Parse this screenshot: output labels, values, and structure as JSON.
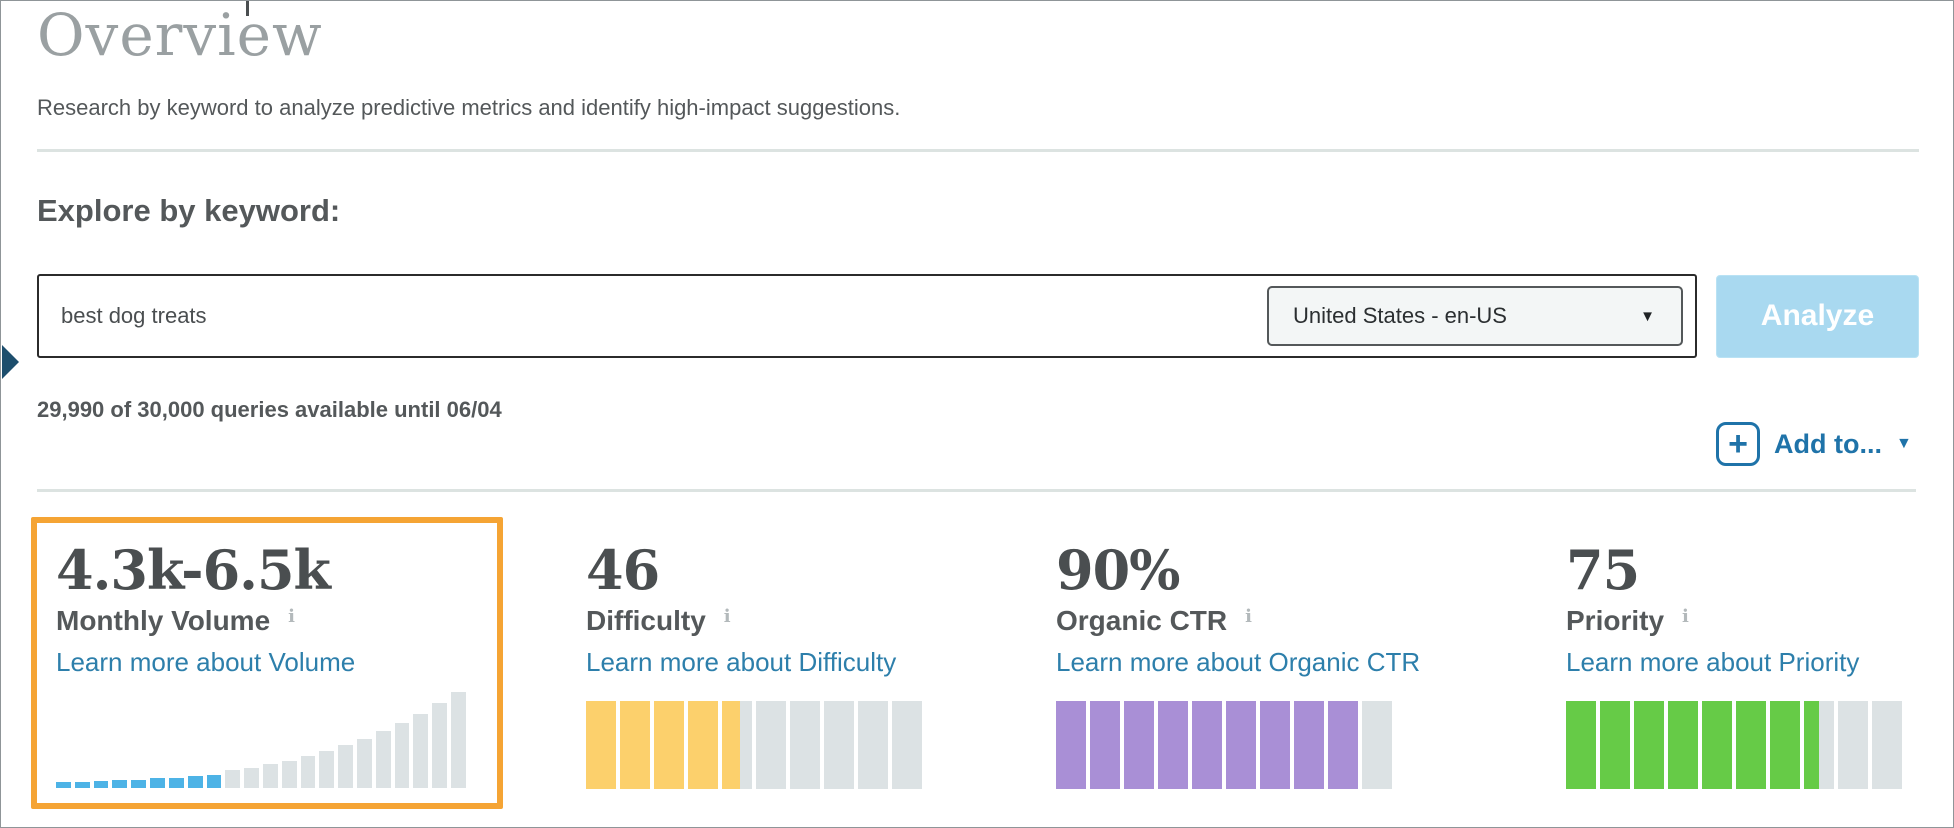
{
  "page": {
    "title": "Overview",
    "subtitle": "Research by keyword to analyze predictive metrics and identify high-impact suggestions."
  },
  "explore": {
    "heading": "Explore by keyword:",
    "keyword_input": {
      "value": "best dog treats"
    },
    "locale_select": {
      "value": "United States - en-US",
      "caret_icon": "▼"
    },
    "analyze_button_label": "Analyze",
    "quota_note": "29,990 of 30,000 queries available until 06/04",
    "add_to": {
      "plus_icon": "+",
      "label": "Add to...",
      "caret_icon": "▼"
    }
  },
  "colors": {
    "highlight_border": "#f5a434",
    "analyze_button_bg": "#a9d9f0",
    "link_blue": "#2d7fab",
    "action_blue": "#1f73a9",
    "pointer_navy": "#1d4e6d",
    "volume_bar_blue": "#4db3e6",
    "difficulty_yellow": "#fcd06c",
    "organic_ctr_purple": "#a98fd6",
    "priority_green": "#66cb47",
    "inactive_gray": "#dce2e4"
  },
  "metrics": [
    {
      "value": "4.3k-6.5k",
      "label": "Monthly Volume",
      "info_icon": "i",
      "link": "Learn more about Volume",
      "highlighted": true
    },
    {
      "value": "46",
      "label": "Difficulty",
      "info_icon": "i",
      "link": "Learn more about Difficulty",
      "highlighted": false
    },
    {
      "value": "90%",
      "label": "Organic CTR",
      "info_icon": "i",
      "link": "Learn more about Organic CTR",
      "highlighted": false
    },
    {
      "value": "75",
      "label": "Priority",
      "info_icon": "i",
      "link": "Learn more about Priority",
      "highlighted": false
    }
  ],
  "chart_data": [
    {
      "type": "bar",
      "name": "monthly-volume-histogram",
      "title": "Monthly Volume distribution (unlabeled axes)",
      "values": [
        6,
        6,
        7,
        8,
        8,
        10,
        10,
        12,
        13,
        18,
        20,
        24,
        28,
        33,
        38,
        44,
        50,
        58,
        66,
        76,
        87,
        98
      ],
      "highlight_bars": 9,
      "highlight_color": "#4db3e6",
      "base_color": "#dce2e4",
      "ylim": [
        0,
        100
      ],
      "grid": false,
      "legend": false
    },
    {
      "type": "gauge",
      "name": "difficulty-gauge",
      "title": "Difficulty",
      "segments": 10,
      "percent": 46,
      "fill_color": "#fcd06c",
      "empty_color": "#dce2e4"
    },
    {
      "type": "gauge",
      "name": "organic-ctr-gauge",
      "title": "Organic CTR",
      "segments": 10,
      "percent": 90,
      "fill_color": "#a98fd6",
      "empty_color": "#dce2e4"
    },
    {
      "type": "gauge",
      "name": "priority-gauge",
      "title": "Priority",
      "segments": 10,
      "percent": 75,
      "fill_color": "#66cb47",
      "empty_color": "#dce2e4"
    }
  ]
}
